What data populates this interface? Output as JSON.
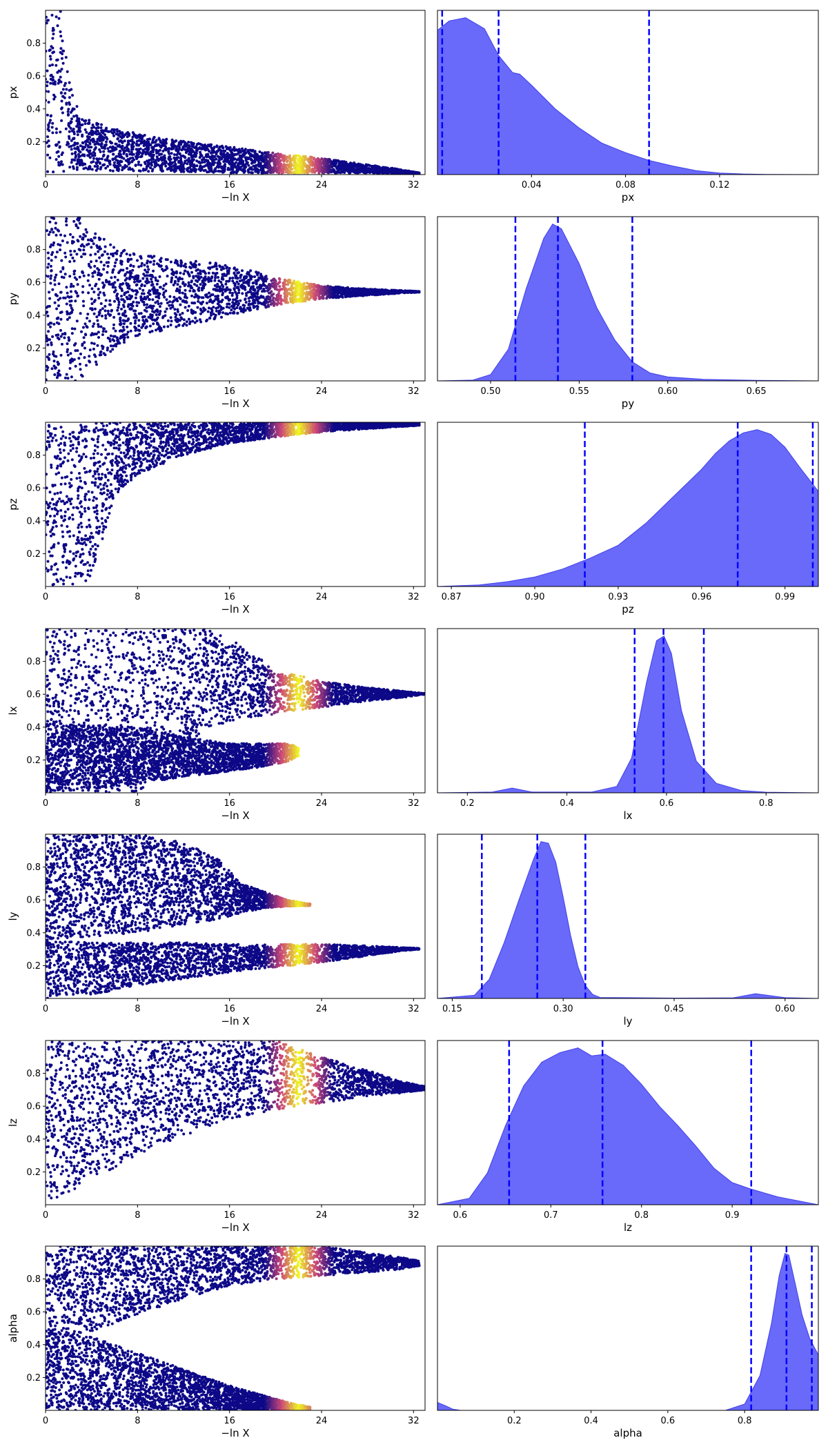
{
  "colors": {
    "trace_low": "#0d0887",
    "trace_mid": "#cc4778",
    "trace_high": "#f0f921",
    "kde_fill": "#6464fa",
    "kde_line": "#4040e8",
    "quantile_line": "#0000ff"
  },
  "chart_data": [
    {
      "row": 1,
      "type": "scatter",
      "variant": "trace",
      "parameter": "px",
      "xlabel": "−ln X",
      "ylabel": "px",
      "xlim": [
        0,
        33
      ],
      "ylim": [
        0,
        1
      ],
      "xticks": [
        0,
        8,
        16,
        24,
        32
      ],
      "yticks": [
        0.2,
        0.4,
        0.6,
        0.8
      ],
      "bright_x_range": [
        19,
        25
      ],
      "envelope": [
        [
          0,
          0,
          1
        ],
        [
          1.5,
          0,
          1
        ],
        [
          2,
          0.03,
          0.6
        ],
        [
          3,
          0.02,
          0.35
        ],
        [
          6,
          0.02,
          0.28
        ],
        [
          10,
          0.02,
          0.22
        ],
        [
          16,
          0.01,
          0.17
        ],
        [
          20,
          0.01,
          0.13
        ],
        [
          24,
          0.01,
          0.1
        ],
        [
          28,
          0.01,
          0.06
        ],
        [
          31,
          0.005,
          0.03
        ],
        [
          32.5,
          0.005,
          0.01
        ]
      ]
    },
    {
      "row": 1,
      "type": "area",
      "variant": "kde",
      "parameter": "px",
      "xlabel": "px",
      "xlim": [
        0,
        0.162
      ],
      "xticks": [
        0.04,
        0.08,
        0.12
      ],
      "quantiles": [
        0.002,
        0.026,
        0.09
      ],
      "x": [
        0,
        0.005,
        0.012,
        0.02,
        0.026,
        0.032,
        0.035,
        0.04,
        0.05,
        0.06,
        0.07,
        0.08,
        0.09,
        0.1,
        0.11,
        0.12,
        0.13,
        0.14,
        0.162
      ],
      "y": [
        0.92,
        0.98,
        1.0,
        0.93,
        0.76,
        0.65,
        0.64,
        0.57,
        0.42,
        0.3,
        0.2,
        0.14,
        0.09,
        0.055,
        0.025,
        0.01,
        0.004,
        0.0015,
        0
      ]
    },
    {
      "row": 2,
      "type": "scatter",
      "variant": "trace",
      "parameter": "py",
      "xlabel": "−ln X",
      "ylabel": "py",
      "xlim": [
        0,
        33
      ],
      "ylim": [
        0,
        1
      ],
      "xticks": [
        0,
        8,
        16,
        24,
        32
      ],
      "yticks": [
        0.2,
        0.4,
        0.6,
        0.8
      ],
      "bright_x_range": [
        19,
        25
      ],
      "envelope": [
        [
          0,
          0,
          1
        ],
        [
          3,
          0,
          1
        ],
        [
          4,
          0.05,
          0.92
        ],
        [
          6,
          0.2,
          0.82
        ],
        [
          8,
          0.27,
          0.77
        ],
        [
          12,
          0.33,
          0.74
        ],
        [
          16,
          0.4,
          0.71
        ],
        [
          20,
          0.46,
          0.63
        ],
        [
          24,
          0.5,
          0.58
        ],
        [
          28,
          0.52,
          0.56
        ],
        [
          31,
          0.535,
          0.55
        ],
        [
          32.5,
          0.54,
          0.545
        ]
      ]
    },
    {
      "row": 2,
      "type": "area",
      "variant": "kde",
      "parameter": "py",
      "xlabel": "py",
      "xlim": [
        0.47,
        0.685
      ],
      "xticks": [
        0.5,
        0.55,
        0.6,
        0.65
      ],
      "quantiles": [
        0.514,
        0.538,
        0.58
      ],
      "x": [
        0.47,
        0.49,
        0.5,
        0.51,
        0.52,
        0.53,
        0.535,
        0.54,
        0.55,
        0.56,
        0.57,
        0.58,
        0.59,
        0.6,
        0.62,
        0.65,
        0.685
      ],
      "y": [
        0,
        0.005,
        0.04,
        0.2,
        0.58,
        0.9,
        0.99,
        0.96,
        0.74,
        0.46,
        0.26,
        0.12,
        0.05,
        0.025,
        0.01,
        0.003,
        0
      ]
    },
    {
      "row": 3,
      "type": "scatter",
      "variant": "trace",
      "parameter": "pz",
      "xlabel": "−ln X",
      "ylabel": "pz",
      "xlim": [
        0,
        33
      ],
      "ylim": [
        0,
        1
      ],
      "xticks": [
        0,
        8,
        16,
        24,
        32
      ],
      "yticks": [
        0.2,
        0.4,
        0.6,
        0.8
      ],
      "bright_x_range": [
        19,
        25
      ],
      "envelope": [
        [
          0,
          0,
          1
        ],
        [
          4,
          0,
          1
        ],
        [
          5,
          0.3,
          1
        ],
        [
          6,
          0.55,
          1
        ],
        [
          8,
          0.68,
          1
        ],
        [
          12,
          0.8,
          1
        ],
        [
          16,
          0.87,
          1
        ],
        [
          20,
          0.91,
          1
        ],
        [
          24,
          0.94,
          1
        ],
        [
          28,
          0.96,
          1
        ],
        [
          32.5,
          0.98,
          1
        ]
      ]
    },
    {
      "row": 3,
      "type": "area",
      "variant": "kde",
      "parameter": "pz",
      "xlabel": "pz",
      "xlim": [
        0.865,
        1.002
      ],
      "xticks": [
        0.87,
        0.9,
        0.93,
        0.96,
        0.99
      ],
      "quantiles": [
        0.918,
        0.973,
        1.0
      ],
      "x": [
        0.865,
        0.88,
        0.89,
        0.9,
        0.91,
        0.92,
        0.93,
        0.94,
        0.95,
        0.96,
        0.965,
        0.97,
        0.975,
        0.98,
        0.985,
        0.99,
        0.995,
        1.002
      ],
      "y": [
        0,
        0.01,
        0.03,
        0.06,
        0.11,
        0.18,
        0.26,
        0.4,
        0.57,
        0.74,
        0.84,
        0.92,
        0.97,
        0.99,
        0.96,
        0.88,
        0.76,
        0.6
      ]
    },
    {
      "row": 4,
      "type": "scatter",
      "variant": "trace",
      "parameter": "lx",
      "xlabel": "−ln X",
      "ylabel": "lx",
      "xlim": [
        0,
        33
      ],
      "ylim": [
        0,
        1
      ],
      "xticks": [
        0,
        8,
        16,
        24,
        32
      ],
      "yticks": [
        0.2,
        0.4,
        0.6,
        0.8
      ],
      "bright_x_range": [
        19,
        25
      ],
      "envelope": [
        [
          0,
          0,
          1
        ],
        [
          8,
          0,
          1
        ],
        [
          14,
          0.4,
          1
        ],
        [
          17,
          0.45,
          0.9
        ],
        [
          20,
          0.48,
          0.75
        ],
        [
          24,
          0.52,
          0.68
        ],
        [
          28,
          0.56,
          0.64
        ],
        [
          31,
          0.58,
          0.62
        ],
        [
          33,
          0.6,
          0.605
        ]
      ],
      "envelope2": [
        [
          0,
          0,
          0.42
        ],
        [
          8,
          0.05,
          0.4
        ],
        [
          12,
          0.1,
          0.34
        ],
        [
          16,
          0.13,
          0.3
        ],
        [
          19,
          0.16,
          0.3
        ],
        [
          21,
          0.19,
          0.3
        ],
        [
          22,
          0.22,
          0.28
        ]
      ]
    },
    {
      "row": 4,
      "type": "area",
      "variant": "kde",
      "parameter": "lx",
      "xlabel": "lx",
      "xlim": [
        0.14,
        0.905
      ],
      "xticks": [
        0.2,
        0.4,
        0.6,
        0.8
      ],
      "quantiles": [
        0.536,
        0.594,
        0.675
      ],
      "x": [
        0.14,
        0.25,
        0.29,
        0.33,
        0.45,
        0.5,
        0.53,
        0.56,
        0.58,
        0.595,
        0.61,
        0.63,
        0.66,
        0.7,
        0.75,
        0.8,
        0.905
      ],
      "y": [
        0,
        0.005,
        0.03,
        0.005,
        0.005,
        0.04,
        0.22,
        0.7,
        0.96,
        0.99,
        0.88,
        0.52,
        0.2,
        0.06,
        0.015,
        0.004,
        0
      ]
    },
    {
      "row": 5,
      "type": "scatter",
      "variant": "trace",
      "parameter": "ly",
      "xlabel": "−ln X",
      "ylabel": "ly",
      "xlim": [
        0,
        33
      ],
      "ylim": [
        0,
        1
      ],
      "xticks": [
        0,
        8,
        16,
        24,
        32
      ],
      "yticks": [
        0.2,
        0.4,
        0.6,
        0.8
      ],
      "bright_x_range": [
        19,
        25
      ],
      "envelope": [
        [
          0,
          0.35,
          1
        ],
        [
          8,
          0.4,
          1
        ],
        [
          12,
          0.45,
          0.95
        ],
        [
          15,
          0.48,
          0.85
        ],
        [
          17,
          0.52,
          0.7
        ],
        [
          19,
          0.55,
          0.65
        ],
        [
          21,
          0.56,
          0.6
        ],
        [
          23,
          0.565,
          0.575
        ]
      ],
      "envelope2": [
        [
          0,
          0,
          0.35
        ],
        [
          4,
          0.02,
          0.34
        ],
        [
          8,
          0.08,
          0.34
        ],
        [
          12,
          0.12,
          0.34
        ],
        [
          16,
          0.16,
          0.33
        ],
        [
          20,
          0.19,
          0.33
        ],
        [
          24,
          0.22,
          0.33
        ],
        [
          28,
          0.26,
          0.32
        ],
        [
          31,
          0.29,
          0.31
        ],
        [
          32.5,
          0.3,
          0.305
        ]
      ]
    },
    {
      "row": 5,
      "type": "area",
      "variant": "kde",
      "parameter": "ly",
      "xlabel": "ly",
      "xlim": [
        0.13,
        0.645
      ],
      "xticks": [
        0.15,
        0.3,
        0.45,
        0.6
      ],
      "quantiles": [
        0.19,
        0.265,
        0.33
      ],
      "x": [
        0.13,
        0.18,
        0.2,
        0.22,
        0.24,
        0.26,
        0.27,
        0.28,
        0.29,
        0.3,
        0.31,
        0.32,
        0.33,
        0.34,
        0.35,
        0.45,
        0.53,
        0.56,
        0.6,
        0.645
      ],
      "y": [
        0,
        0.02,
        0.12,
        0.35,
        0.62,
        0.88,
        0.99,
        0.98,
        0.86,
        0.64,
        0.4,
        0.2,
        0.08,
        0.025,
        0.006,
        0.002,
        0.004,
        0.03,
        0.005,
        0
      ]
    },
    {
      "row": 6,
      "type": "scatter",
      "variant": "trace",
      "parameter": "lz",
      "xlabel": "−ln X",
      "ylabel": "lz",
      "xlim": [
        0,
        33
      ],
      "ylim": [
        0,
        1
      ],
      "xticks": [
        0,
        8,
        16,
        24,
        32
      ],
      "yticks": [
        0.2,
        0.4,
        0.6,
        0.8
      ],
      "bright_x_range": [
        19,
        25
      ],
      "envelope": [
        [
          0,
          0,
          1
        ],
        [
          4,
          0.15,
          1
        ],
        [
          8,
          0.3,
          1
        ],
        [
          12,
          0.42,
          1
        ],
        [
          16,
          0.52,
          1
        ],
        [
          20,
          0.58,
          1
        ],
        [
          22,
          0.6,
          0.95
        ],
        [
          24,
          0.62,
          0.9
        ],
        [
          28,
          0.66,
          0.82
        ],
        [
          31,
          0.68,
          0.75
        ],
        [
          33,
          0.7,
          0.72
        ]
      ]
    },
    {
      "row": 6,
      "type": "area",
      "variant": "kde",
      "parameter": "lz",
      "xlabel": "lz",
      "xlim": [
        0.575,
        0.995
      ],
      "xticks": [
        0.6,
        0.7,
        0.8,
        0.9
      ],
      "quantiles": [
        0.654,
        0.757,
        0.921
      ],
      "x": [
        0.575,
        0.61,
        0.63,
        0.65,
        0.67,
        0.69,
        0.71,
        0.73,
        0.745,
        0.76,
        0.78,
        0.8,
        0.82,
        0.84,
        0.86,
        0.88,
        0.9,
        0.92,
        0.95,
        0.995
      ],
      "y": [
        0,
        0.04,
        0.2,
        0.5,
        0.75,
        0.9,
        0.96,
        0.99,
        0.94,
        0.95,
        0.88,
        0.76,
        0.62,
        0.5,
        0.37,
        0.23,
        0.14,
        0.1,
        0.05,
        0
      ]
    },
    {
      "row": 7,
      "type": "scatter",
      "variant": "trace",
      "parameter": "alpha",
      "xlabel": "−ln X",
      "ylabel": "alpha",
      "xlim": [
        0,
        33
      ],
      "ylim": [
        0,
        1
      ],
      "xticks": [
        0,
        8,
        16,
        24,
        32
      ],
      "yticks": [
        0.2,
        0.4,
        0.6,
        0.8
      ],
      "bright_x_range": [
        19,
        25
      ],
      "envelope": [
        [
          0,
          0.45,
          1
        ],
        [
          4,
          0.48,
          1
        ],
        [
          8,
          0.58,
          1
        ],
        [
          12,
          0.68,
          1
        ],
        [
          16,
          0.76,
          1
        ],
        [
          20,
          0.8,
          1
        ],
        [
          24,
          0.82,
          1
        ],
        [
          28,
          0.84,
          0.96
        ],
        [
          31,
          0.86,
          0.93
        ],
        [
          32.5,
          0.88,
          0.91
        ]
      ],
      "envelope2": [
        [
          0,
          0,
          0.5
        ],
        [
          4,
          0,
          0.45
        ],
        [
          8,
          0,
          0.35
        ],
        [
          12,
          0,
          0.25
        ],
        [
          16,
          0,
          0.15
        ],
        [
          19,
          0,
          0.09
        ],
        [
          21,
          0,
          0.05
        ],
        [
          23,
          0,
          0.02
        ]
      ]
    },
    {
      "row": 7,
      "type": "area",
      "variant": "kde",
      "parameter": "alpha",
      "xlabel": "alpha",
      "xlim": [
        0,
        0.992
      ],
      "xticks": [
        0.2,
        0.4,
        0.6,
        0.8
      ],
      "quantiles": [
        0.817,
        0.909,
        0.975
      ],
      "x": [
        0,
        0.02,
        0.04,
        0.06,
        0.75,
        0.8,
        0.84,
        0.87,
        0.89,
        0.905,
        0.915,
        0.93,
        0.95,
        0.97,
        0.992
      ],
      "y": [
        0.05,
        0.03,
        0.008,
        0,
        0,
        0.04,
        0.22,
        0.55,
        0.85,
        0.99,
        0.98,
        0.82,
        0.6,
        0.45,
        0.35
      ]
    }
  ]
}
